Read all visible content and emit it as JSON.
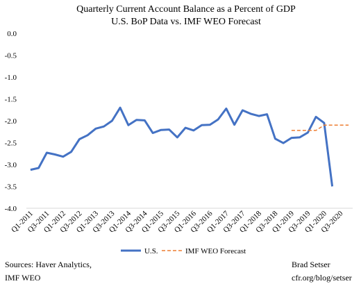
{
  "chart_data": {
    "type": "line",
    "title": "Quarterly Current Account Balance as a Percent of GDP",
    "subtitle": "U.S. BoP Data vs. IMF WEO Forecast",
    "ylim": [
      -4.0,
      0.0
    ],
    "yticks": [
      "0.0",
      "-0.5",
      "-1.0",
      "-1.5",
      "-2.0",
      "-2.5",
      "-3.0",
      "-3.5",
      "-4.0"
    ],
    "ytick_values": [
      0.0,
      -0.5,
      -1.0,
      -1.5,
      -2.0,
      -2.5,
      -3.0,
      -3.5,
      -4.0
    ],
    "grid": false,
    "legend_position": "bottom",
    "categories": [
      "Q1-2011",
      "Q2-2011",
      "Q3-2011",
      "Q4-2011",
      "Q1-2012",
      "Q2-2012",
      "Q3-2012",
      "Q4-2012",
      "Q1-2013",
      "Q2-2013",
      "Q3-2013",
      "Q4-2013",
      "Q1-2014",
      "Q2-2014",
      "Q3-2014",
      "Q4-2014",
      "Q1-2015",
      "Q2-2015",
      "Q3-2015",
      "Q4-2015",
      "Q1-2016",
      "Q2-2016",
      "Q3-2016",
      "Q4-2016",
      "Q1-2017",
      "Q2-2017",
      "Q3-2017",
      "Q4-2017",
      "Q1-2018",
      "Q2-2018",
      "Q3-2018",
      "Q4-2018",
      "Q1-2019",
      "Q2-2019",
      "Q3-2019",
      "Q4-2019",
      "Q1-2020",
      "Q2-2020",
      "Q3-2020",
      "Q4-2020"
    ],
    "xtick_labels": [
      "Q1-2011",
      "Q3-2011",
      "Q1-2012",
      "Q3-2012",
      "Q1-2013",
      "Q3-2013",
      "Q1-2014",
      "Q3-2014",
      "Q1-2015",
      "Q3-2015",
      "Q1-2016",
      "Q3-2016",
      "Q1-2017",
      "Q3-2017",
      "Q1-2018",
      "Q3-2018",
      "Q1-2019",
      "Q3-2019",
      "Q1-2020",
      "Q3-2020"
    ],
    "series": [
      {
        "name": "U.S.",
        "color": "#4472c4",
        "style": "solid",
        "values": [
          -3.12,
          -3.08,
          -2.73,
          -2.77,
          -2.82,
          -2.71,
          -2.42,
          -2.33,
          -2.18,
          -2.13,
          -2.0,
          -1.7,
          -2.1,
          -1.98,
          -1.99,
          -2.28,
          -2.21,
          -2.2,
          -2.38,
          -2.16,
          -2.22,
          -2.1,
          -2.09,
          -1.97,
          -1.72,
          -2.09,
          -1.76,
          -1.84,
          -1.89,
          -1.85,
          -2.41,
          -2.51,
          -2.39,
          -2.38,
          -2.27,
          -1.91,
          -2.05,
          -3.5,
          null,
          null
        ]
      },
      {
        "name": "IMF WEO Forecast",
        "color": "#ed7d31",
        "style": "dashed",
        "values": [
          null,
          null,
          null,
          null,
          null,
          null,
          null,
          null,
          null,
          null,
          null,
          null,
          null,
          null,
          null,
          null,
          null,
          null,
          null,
          null,
          null,
          null,
          null,
          null,
          null,
          null,
          null,
          null,
          null,
          null,
          null,
          null,
          -2.22,
          -2.22,
          -2.22,
          -2.22,
          -2.1,
          -2.1,
          -2.1,
          -2.1
        ]
      }
    ]
  },
  "sources": {
    "line1": "Sources: Haver Analytics,",
    "line2": "IMF WEO"
  },
  "credit": {
    "line1": "Brad Setser",
    "line2": "cfr.org/blog/setser"
  }
}
